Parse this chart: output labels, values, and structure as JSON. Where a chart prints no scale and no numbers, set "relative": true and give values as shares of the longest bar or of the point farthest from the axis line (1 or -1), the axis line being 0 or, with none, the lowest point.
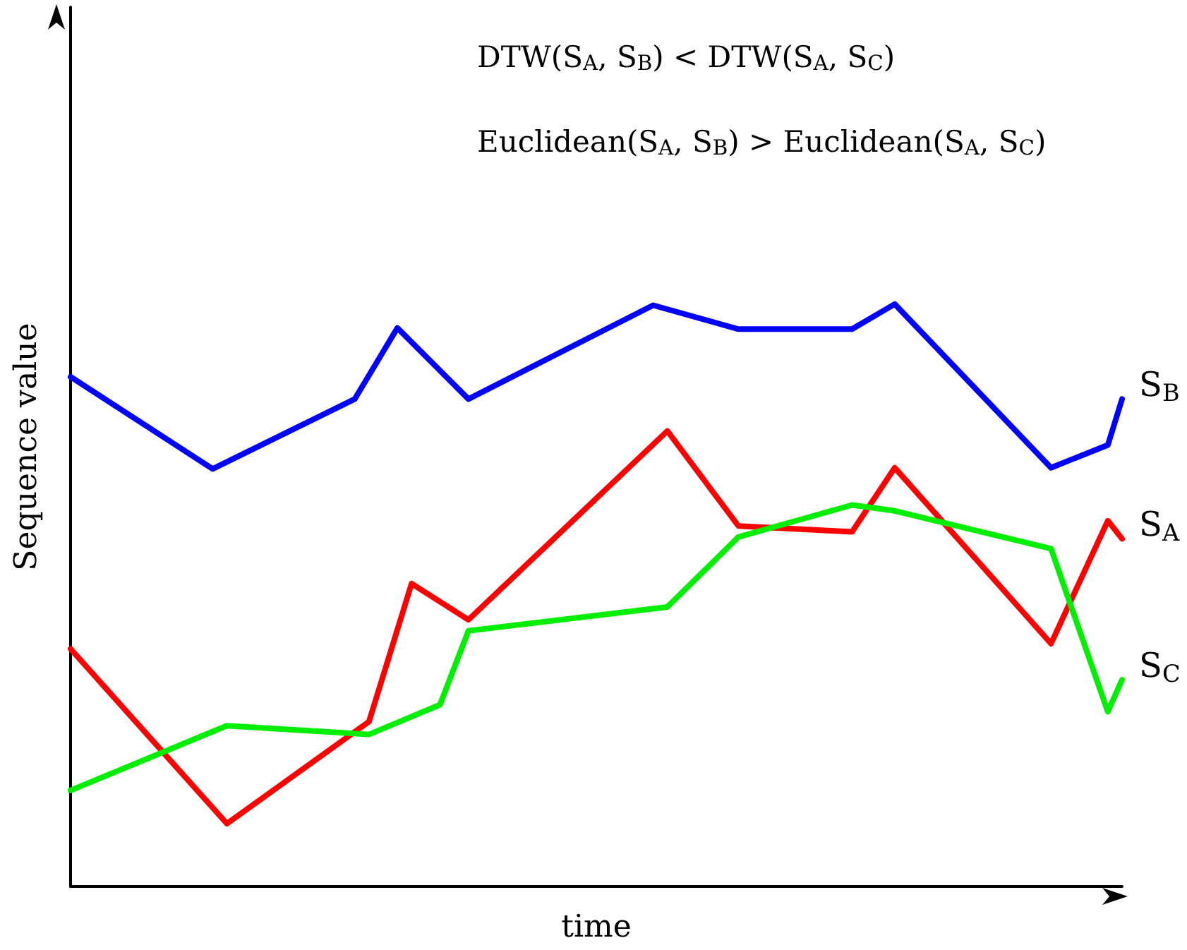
{
  "chart_data": {
    "type": "line",
    "relative": true,
    "xlabel": "time",
    "ylabel": "Sequence value",
    "grid": false,
    "legend": false,
    "marker": "none",
    "line_style": "solid",
    "annotations": [
      "DTW(S$_{A}$, S$_{B}$) < DTW(S$_{A}$, S$_{C}$)",
      "Euclidean(S$_{A}$, S$_{B}$) > Euclidean(S$_{A}$, S$_{C}$)"
    ],
    "categories": [
      null,
      null,
      null,
      null,
      null,
      null,
      null,
      null,
      null,
      null,
      null,
      null,
      null,
      null,
      null,
      null,
      null,
      null,
      null,
      null,
      null,
      null,
      null,
      null,
      null,
      null,
      null,
      null,
      null,
      null,
      null,
      null,
      null,
      null,
      null,
      null,
      null,
      null,
      null,
      null,
      null,
      null,
      null,
      null,
      null,
      null,
      null,
      null,
      null,
      null,
      null,
      null,
      null,
      null,
      null,
      null,
      null,
      null,
      null,
      null,
      null,
      null,
      null,
      null,
      null,
      null,
      null,
      null,
      null,
      null,
      null,
      null,
      null,
      null,
      null
    ],
    "series": [
      {
        "name": "S$_{B}$",
        "color": "#0000ff",
        "values": [
          0.875,
          null,
          null,
          null,
          null,
          null,
          null,
          null,
          null,
          null,
          0.717,
          null,
          null,
          null,
          null,
          null,
          null,
          null,
          null,
          null,
          0.837,
          null,
          null,
          0.959,
          null,
          null,
          null,
          null,
          0.837,
          null,
          null,
          null,
          null,
          null,
          null,
          null,
          null,
          null,
          null,
          null,
          null,
          0.998,
          null,
          null,
          null,
          null,
          null,
          0.957,
          null,
          null,
          null,
          null,
          null,
          null,
          null,
          0.957,
          null,
          null,
          1,
          null,
          null,
          null,
          null,
          null,
          null,
          null,
          null,
          null,
          null,
          0.719,
          null,
          null,
          null,
          0.758,
          0.837
        ]
      },
      {
        "name": "S$_{A}$",
        "color": "#ff0000",
        "values": [
          0.408,
          null,
          null,
          null,
          null,
          null,
          null,
          null,
          null,
          null,
          null,
          0.108,
          null,
          null,
          null,
          null,
          null,
          null,
          null,
          null,
          null,
          0.283,
          null,
          null,
          0.52,
          null,
          null,
          null,
          0.458,
          null,
          null,
          null,
          null,
          null,
          null,
          null,
          null,
          null,
          null,
          null,
          null,
          null,
          0.782,
          null,
          null,
          null,
          null,
          0.619,
          null,
          null,
          null,
          null,
          null,
          null,
          null,
          0.609,
          null,
          null,
          0.719,
          null,
          null,
          null,
          null,
          null,
          null,
          null,
          null,
          null,
          null,
          0.417,
          null,
          null,
          null,
          0.628,
          0.597
        ]
      },
      {
        "name": "S$_{C}$",
        "color": "#00ee00",
        "values": [
          0.165,
          null,
          null,
          null,
          null,
          null,
          null,
          null,
          null,
          null,
          null,
          0.276,
          null,
          null,
          null,
          null,
          null,
          null,
          null,
          null,
          null,
          0.261,
          null,
          null,
          null,
          null,
          0.312,
          null,
          0.439,
          null,
          null,
          null,
          null,
          null,
          null,
          null,
          null,
          null,
          null,
          null,
          null,
          null,
          0.48,
          null,
          null,
          null,
          null,
          0.6,
          null,
          null,
          null,
          null,
          null,
          null,
          null,
          0.655,
          null,
          null,
          0.645,
          null,
          null,
          null,
          null,
          null,
          null,
          null,
          null,
          null,
          null,
          0.58,
          null,
          null,
          null,
          0.3,
          0.355
        ]
      }
    ]
  }
}
